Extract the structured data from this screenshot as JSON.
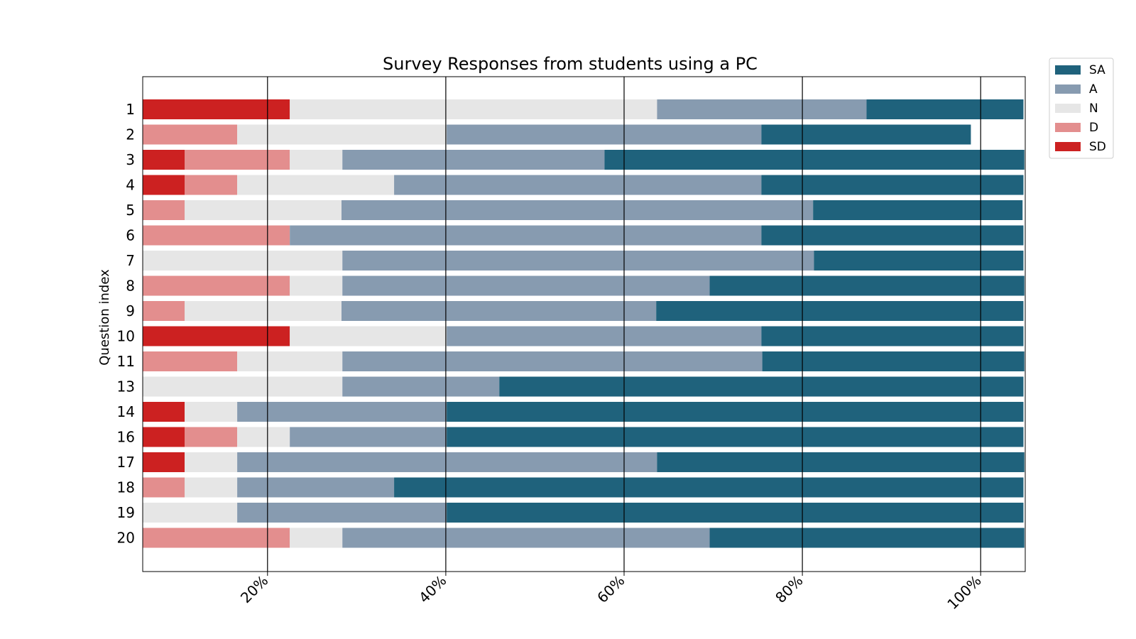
{
  "chart_data": {
    "type": "bar",
    "orientation": "horizontal",
    "stacked": true,
    "title": "Survey Responses from students using a PC",
    "xlabel": "",
    "ylabel": "Question index",
    "xlim": [
      0.06,
      1.05
    ],
    "xticks": [
      0.2,
      0.4,
      0.6,
      0.8,
      1.0
    ],
    "xtick_labels": [
      "20%",
      "40%",
      "60%",
      "80%",
      "100%"
    ],
    "grid": "vertical lines at x ticks",
    "legend_position": "outside top-right",
    "categories": [
      "1",
      "2",
      "3",
      "4",
      "5",
      "6",
      "7",
      "8",
      "9",
      "10",
      "11",
      "13",
      "14",
      "16",
      "17",
      "18",
      "19",
      "20"
    ],
    "series": [
      {
        "name": "SD",
        "color": "#cc2121",
        "values": [
          0.165,
          0,
          0.047,
          0.047,
          0,
          0,
          0,
          0,
          0,
          0.165,
          0,
          0,
          0.047,
          0.047,
          0.047,
          0,
          0,
          0
        ]
      },
      {
        "name": "D",
        "color": "#e38e8e",
        "values": [
          0,
          0.106,
          0.118,
          0.059,
          0.047,
          0.165,
          0,
          0.165,
          0.047,
          0,
          0.106,
          0,
          0,
          0.059,
          0,
          0.047,
          0,
          0.165
        ]
      },
      {
        "name": "N",
        "color": "#e6e6e6",
        "values": [
          0.412,
          0.235,
          0.059,
          0.176,
          0.176,
          0,
          0.224,
          0.059,
          0.176,
          0.176,
          0.118,
          0.224,
          0.059,
          0.059,
          0.059,
          0.059,
          0.106,
          0.059
        ]
      },
      {
        "name": "A",
        "color": "#879bb0",
        "values": [
          0.235,
          0.353,
          0.294,
          0.412,
          0.529,
          0.529,
          0.529,
          0.412,
          0.353,
          0.353,
          0.471,
          0.176,
          0.235,
          0.176,
          0.471,
          0.176,
          0.235,
          0.412
        ]
      },
      {
        "name": "SA",
        "color": "#1f627c",
        "values": [
          0.176,
          0.235,
          0.471,
          0.294,
          0.235,
          0.294,
          0.235,
          0.353,
          0.412,
          0.294,
          0.294,
          0.588,
          0.647,
          0.647,
          0.412,
          0.706,
          0.647,
          0.353
        ]
      }
    ],
    "legend_order": [
      "SA",
      "A",
      "N",
      "D",
      "SD"
    ]
  }
}
